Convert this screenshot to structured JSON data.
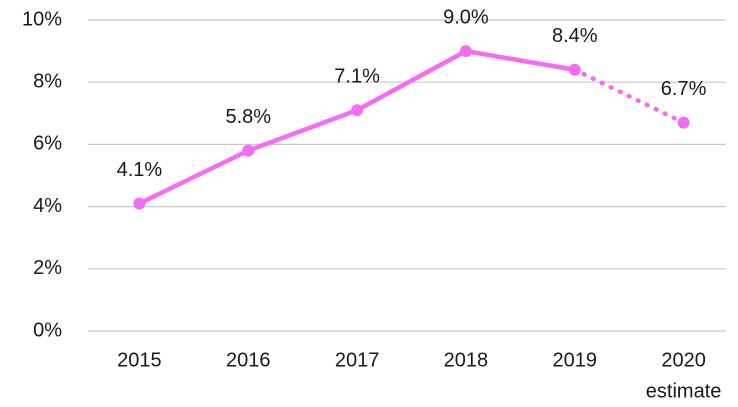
{
  "chart_data": {
    "type": "line",
    "categories": [
      "2015",
      "2016",
      "2017",
      "2018",
      "2019",
      "2020"
    ],
    "category_note": "estimate",
    "series": [
      {
        "color": "#f36cf2",
        "values": [
          4.1,
          5.8,
          7.1,
          9.0,
          8.4,
          6.7
        ],
        "value_labels": [
          "4.1%",
          "5.8%",
          "7.1%",
          "9.0%",
          "8.4%",
          "6.7%"
        ],
        "dotted_from_index": 4
      }
    ],
    "ylim": [
      0,
      10
    ],
    "yticks": [
      {
        "value": 0,
        "label": "0%"
      },
      {
        "value": 2,
        "label": "2%"
      },
      {
        "value": 4,
        "label": "4%"
      },
      {
        "value": 6,
        "label": "6%"
      },
      {
        "value": 8,
        "label": "8%"
      },
      {
        "value": 10,
        "label": "10%"
      }
    ],
    "grid": true
  }
}
